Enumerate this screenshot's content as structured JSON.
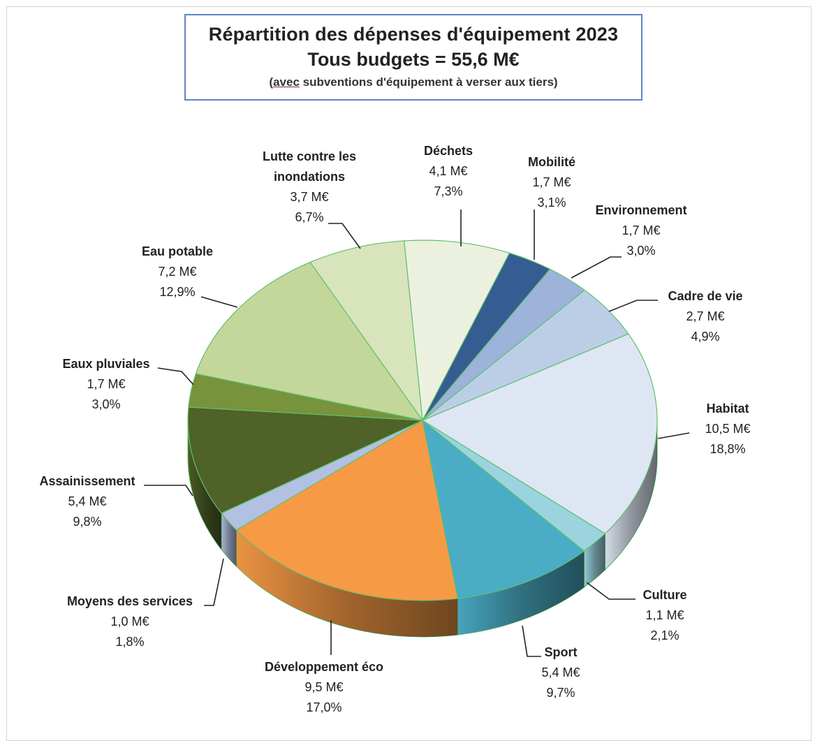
{
  "title": {
    "line1": "Répartition des dépenses d'équipement 2023",
    "line2": "Tous budgets = 55,6 M€",
    "line3_prefix": "(",
    "line3_underlined": "avec",
    "line3_rest": " subventions d'équipement à verser aux tiers)"
  },
  "chart_data": {
    "type": "pie",
    "title": "Répartition des dépenses d'équipement 2023",
    "subtitle": "Tous budgets = 55,6 M€",
    "note": "(avec subventions d'équipement à verser aux tiers)",
    "total": "55,6 M€",
    "unit": "M€",
    "slices": [
      {
        "name": "Déchets",
        "value": 4.1,
        "value_label": "4,1 M€",
        "pct": 7.3,
        "pct_label": "7,3%",
        "color": "#ebf1de"
      },
      {
        "name": "Mobilité",
        "value": 1.7,
        "value_label": "1,7 M€",
        "pct": 3.1,
        "pct_label": "3,1%",
        "color": "#355d91"
      },
      {
        "name": "Environnement",
        "value": 1.7,
        "value_label": "1,7 M€",
        "pct": 3.0,
        "pct_label": "3,0%",
        "color": "#9db3da"
      },
      {
        "name": "Cadre de vie",
        "value": 2.7,
        "value_label": "2,7 M€",
        "pct": 4.9,
        "pct_label": "4,9%",
        "color": "#bccee6"
      },
      {
        "name": "Habitat",
        "value": 10.5,
        "value_label": "10,5 M€",
        "pct": 18.8,
        "pct_label": "18,8%",
        "color": "#dee6f4"
      },
      {
        "name": "Culture",
        "value": 1.1,
        "value_label": "1,1 M€",
        "pct": 2.1,
        "pct_label": "2,1%",
        "color": "#9bd4df"
      },
      {
        "name": "Sport",
        "value": 5.4,
        "value_label": "5,4 M€",
        "pct": 9.7,
        "pct_label": "9,7%",
        "color": "#4bacc6"
      },
      {
        "name": "Développement éco",
        "value": 9.5,
        "value_label": "9,5 M€",
        "pct": 17.0,
        "pct_label": "17,0%",
        "color": "#f79a45"
      },
      {
        "name": "Moyens des services",
        "value": 1.0,
        "value_label": "1,0 M€",
        "pct": 1.8,
        "pct_label": "1,8%",
        "color": "#b2c0e2"
      },
      {
        "name": "Assainissement",
        "value": 5.4,
        "value_label": "5,4 M€",
        "pct": 9.8,
        "pct_label": "9,8%",
        "color": "#4f6228"
      },
      {
        "name": "Eaux pluviales",
        "value": 1.7,
        "value_label": "1,7 M€",
        "pct": 3.0,
        "pct_label": "3,0%",
        "color": "#77933c"
      },
      {
        "name": "Eau potable",
        "value": 7.2,
        "value_label": "7,2 M€",
        "pct": 12.9,
        "pct_label": "12,9%",
        "color": "#c4d79b"
      },
      {
        "name": "Lutte contre les inondations",
        "name_lines": [
          "Lutte contre les",
          "inondations"
        ],
        "value": 3.7,
        "value_label": "3,7 M€",
        "pct": 6.7,
        "pct_label": "6,7%",
        "color": "#d8e4bc"
      }
    ]
  }
}
